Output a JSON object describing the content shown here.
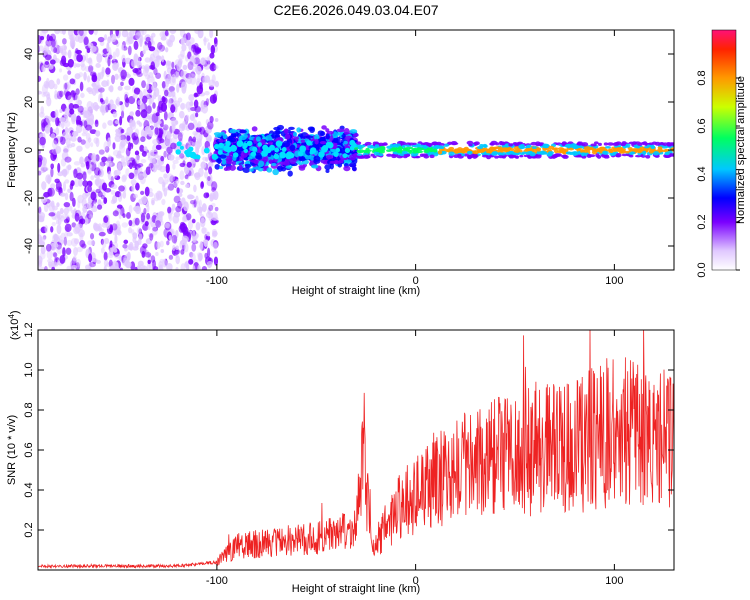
{
  "title": "C2E6.2026.049.03.04.E07",
  "chart_data": [
    {
      "type": "heatmap",
      "xlabel": "Height of straight line (km)",
      "ylabel": "Frequency (Hz)",
      "xlim": [
        -190,
        130
      ],
      "ylim": [
        -50,
        50
      ],
      "xticks": [
        -100,
        0,
        100
      ],
      "xtick_labels": [
        "-100",
        "0",
        "100"
      ],
      "yticks": [
        -40,
        -20,
        0,
        20,
        40
      ],
      "ytick_labels": [
        "-40",
        "-20",
        "0",
        "20",
        "40"
      ],
      "colorbar": {
        "label": "Normalized spectral amplitude",
        "range": [
          0,
          1
        ],
        "ticks": [
          0.0,
          0.2,
          0.4,
          0.6,
          0.8
        ],
        "tick_labels": [
          "0.0",
          "0.2",
          "0.4",
          "0.6",
          "0.8"
        ]
      },
      "regions": [
        {
          "x_range": [
            -190,
            -100
          ],
          "freq_spread": 50,
          "amplitude": 0.15,
          "description": "noise"
        },
        {
          "x_range": [
            -100,
            -30
          ],
          "freq_spread": 10,
          "amplitude": 0.3
        },
        {
          "x_range": [
            -30,
            130
          ],
          "freq_spread": 3,
          "amplitude": 0.8
        }
      ]
    },
    {
      "type": "line",
      "xlabel": "Height of straight line (km)",
      "ylabel": "SNR (10 * v/v)",
      "y_exponent": "(x10",
      "y_exponent_power": "4",
      "xlim": [
        -190,
        130
      ],
      "ylim": [
        0,
        1.2
      ],
      "xticks": [
        -100,
        0,
        100
      ],
      "xtick_labels": [
        "-100",
        "0",
        "100"
      ],
      "yticks": [
        0.2,
        0.4,
        0.6,
        0.8,
        1.0,
        1.2
      ],
      "ytick_labels": [
        "0.2",
        "0.4",
        "0.6",
        "0.8",
        "1.0",
        "1.2"
      ],
      "color": "#ee2222",
      "envelope": {
        "x": [
          -190,
          -120,
          -100,
          -90,
          -50,
          -30,
          -26,
          -22,
          -10,
          0,
          20,
          50,
          80,
          100,
          120,
          130
        ],
        "y": [
          0.02,
          0.02,
          0.04,
          0.12,
          0.16,
          0.2,
          0.6,
          0.1,
          0.3,
          0.38,
          0.5,
          0.58,
          0.62,
          0.7,
          0.65,
          0.66
        ]
      }
    }
  ]
}
